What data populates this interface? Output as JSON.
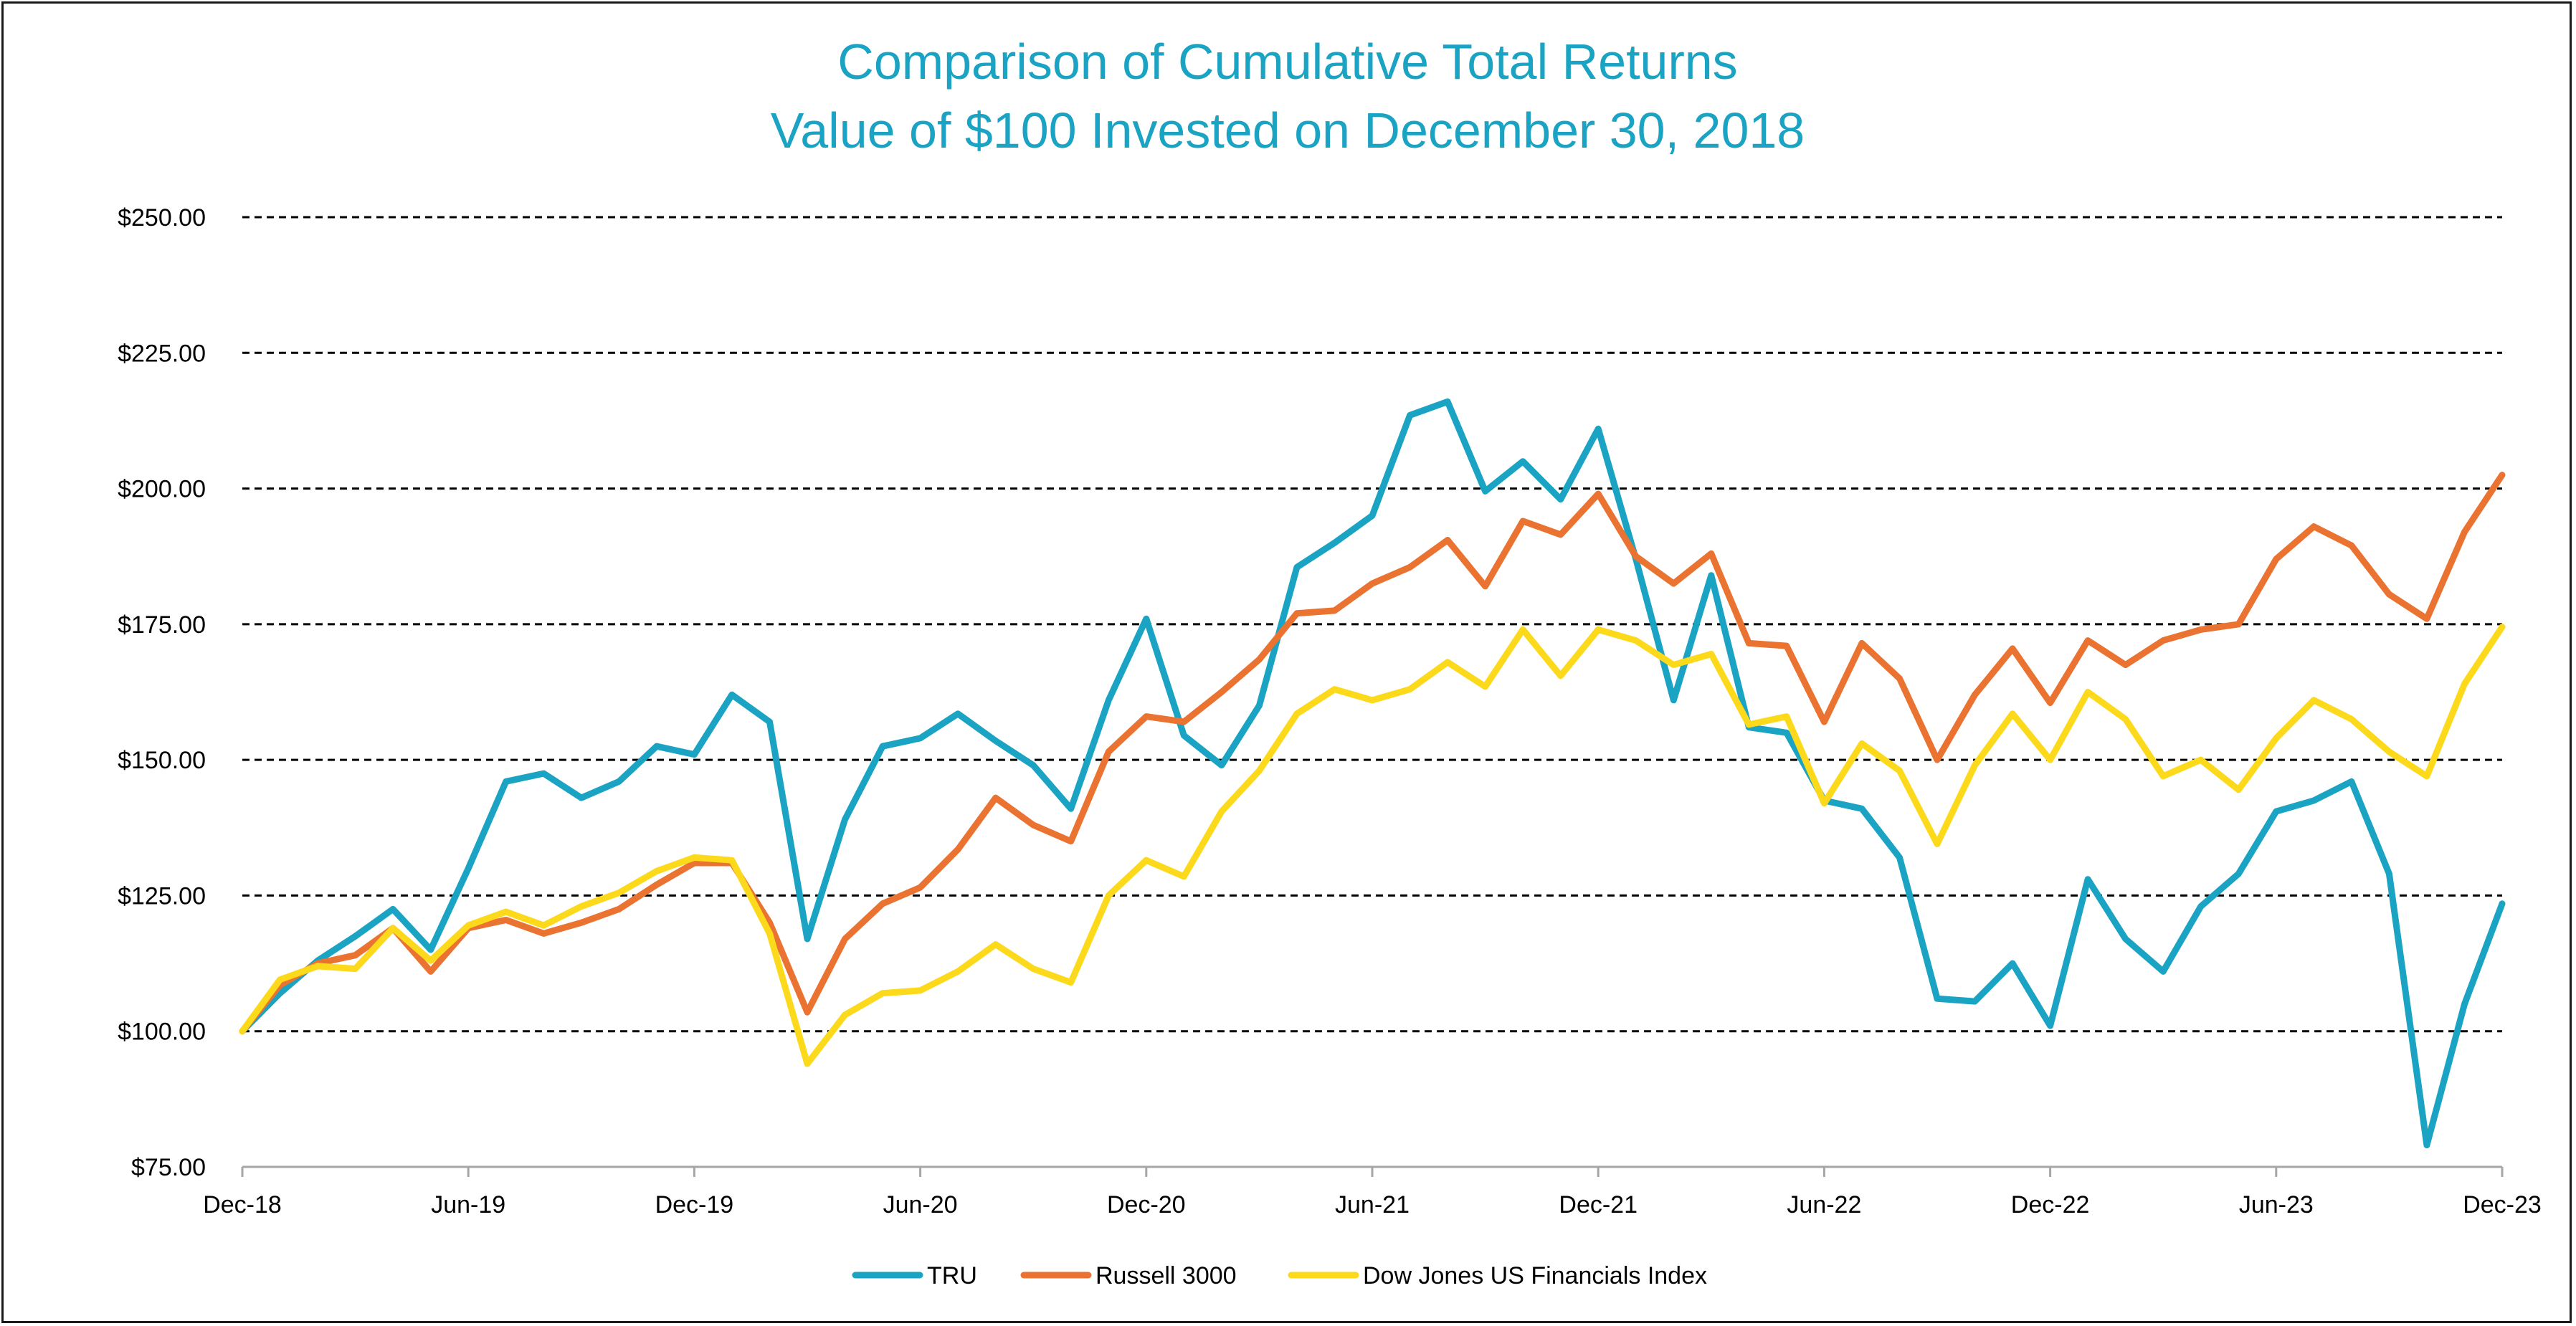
{
  "chart_data": {
    "type": "line",
    "title": "Comparison of Cumulative Total Returns",
    "subtitle": "Value of $100 Invested on December 30, 2018",
    "xlabel": "",
    "ylabel": "",
    "ylim": [
      75,
      250
    ],
    "y_ticks": [
      75,
      100,
      125,
      150,
      175,
      200,
      225,
      250
    ],
    "y_tick_labels": [
      "$75.00",
      "$100.00",
      "$125.00",
      "$150.00",
      "$175.00",
      "$200.00",
      "$225.00",
      "$250.00"
    ],
    "x_tick_labels": [
      "Dec-18",
      "Jun-19",
      "Dec-19",
      "Jun-20",
      "Dec-20",
      "Jun-21",
      "Dec-21",
      "Jun-22",
      "Dec-22",
      "Jun-23",
      "Dec-23"
    ],
    "x_tick_month_index": [
      0,
      6,
      12,
      18,
      24,
      30,
      36,
      42,
      48,
      54,
      60
    ],
    "grid": true,
    "legend_position": "bottom",
    "colors": {
      "title": "#1aa3c2",
      "TRU": "#1aa3c2",
      "Russell 3000": "#ea7331",
      "Dow Jones US Financials Index": "#fcd91a",
      "grid": "#000000",
      "axis": "#a6a6a6"
    },
    "series": [
      {
        "name": "TRU",
        "values": [
          100,
          107,
          113,
          117.5,
          122.5,
          115,
          130,
          146,
          147.5,
          143,
          146,
          152.5,
          151,
          162,
          157,
          117,
          139,
          152.5,
          154,
          158.5,
          153.5,
          149,
          141,
          161,
          176,
          154.5,
          149,
          160,
          185.5,
          190,
          195,
          213.5,
          216,
          199.5,
          205,
          198,
          211,
          187,
          161,
          184,
          156,
          155,
          142.5,
          141,
          132,
          106,
          105.5,
          112.5,
          101,
          128,
          117,
          111,
          123,
          129,
          140.5,
          142.5,
          146,
          129,
          79,
          105,
          123.5
        ]
      },
      {
        "name": "Russell 3000",
        "values": [
          100,
          108.5,
          112.5,
          114,
          119,
          111,
          119,
          120.5,
          118,
          120,
          122.5,
          127,
          131,
          131,
          120,
          103.5,
          117,
          123.5,
          126.5,
          133.5,
          143,
          138,
          135,
          151.5,
          158,
          157,
          162.5,
          168.5,
          177,
          177.5,
          182.5,
          185.5,
          190.5,
          182,
          194,
          191.5,
          199,
          187.5,
          182.5,
          188,
          171.5,
          171,
          157,
          171.5,
          165,
          150,
          162,
          170.5,
          160.5,
          172,
          167.5,
          172,
          174,
          175,
          187,
          193,
          189.5,
          180.5,
          176,
          192,
          202.5
        ]
      },
      {
        "name": "Dow Jones US Financials Index",
        "values": [
          100,
          109.5,
          112,
          111.5,
          119,
          113,
          119.5,
          122,
          119.5,
          123,
          125.5,
          129.5,
          132,
          131.5,
          118,
          94,
          103,
          107,
          107.5,
          111,
          116,
          111.5,
          109,
          125,
          131.5,
          128.5,
          140.5,
          148,
          158.5,
          163,
          161,
          163,
          168,
          163.5,
          174,
          165.5,
          174,
          172,
          167.5,
          169.5,
          156.5,
          158,
          142,
          153,
          148,
          134.5,
          149,
          158.5,
          150,
          162.5,
          157.5,
          147,
          150,
          144.5,
          154,
          161,
          157.5,
          151.5,
          147,
          164,
          174.5
        ]
      }
    ]
  }
}
